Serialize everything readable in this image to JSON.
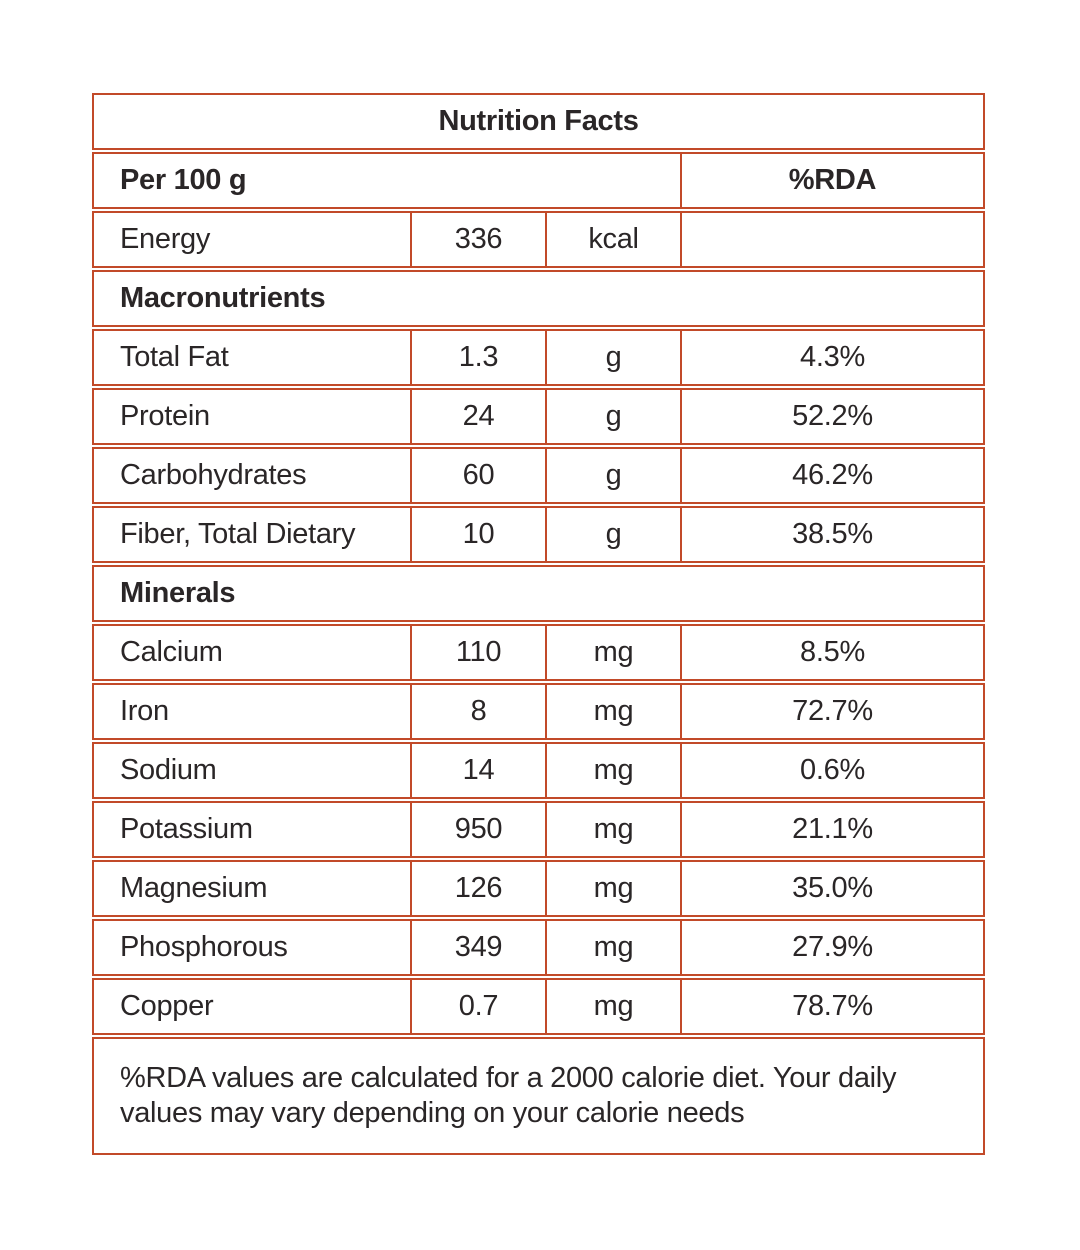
{
  "colors": {
    "accent_border": "#c24a29",
    "text": "#2a2627",
    "background": "#ffffff"
  },
  "table": {
    "title": "Nutrition Facts",
    "serving_header": "Per 100 g",
    "rda_header": "%RDA",
    "energy": {
      "label": "Energy",
      "value": "336",
      "unit": "kcal",
      "rda": ""
    },
    "sections": [
      {
        "heading": "Macronutrients",
        "rows": [
          {
            "label": "Total Fat",
            "value": "1.3",
            "unit": "g",
            "rda": "4.3%"
          },
          {
            "label": "Protein",
            "value": "24",
            "unit": "g",
            "rda": "52.2%"
          },
          {
            "label": "Carbohydrates",
            "value": "60",
            "unit": "g",
            "rda": "46.2%"
          },
          {
            "label": "Fiber, Total Dietary",
            "value": "10",
            "unit": "g",
            "rda": "38.5%"
          }
        ]
      },
      {
        "heading": "Minerals",
        "rows": [
          {
            "label": "Calcium",
            "value": "110",
            "unit": "mg",
            "rda": "8.5%"
          },
          {
            "label": "Iron",
            "value": "8",
            "unit": "mg",
            "rda": "72.7%"
          },
          {
            "label": "Sodium",
            "value": "14",
            "unit": "mg",
            "rda": "0.6%"
          },
          {
            "label": "Potassium",
            "value": "950",
            "unit": "mg",
            "rda": "21.1%"
          },
          {
            "label": "Magnesium",
            "value": "126",
            "unit": "mg",
            "rda": "35.0%"
          },
          {
            "label": "Phosphorous",
            "value": "349",
            "unit": "mg",
            "rda": "27.9%"
          },
          {
            "label": "Copper",
            "value": "0.7",
            "unit": "mg",
            "rda": "78.7%"
          }
        ]
      }
    ],
    "footnote": "%RDA values are calculated for a 2000 calorie diet. Your daily values may vary depending on your calorie needs"
  }
}
